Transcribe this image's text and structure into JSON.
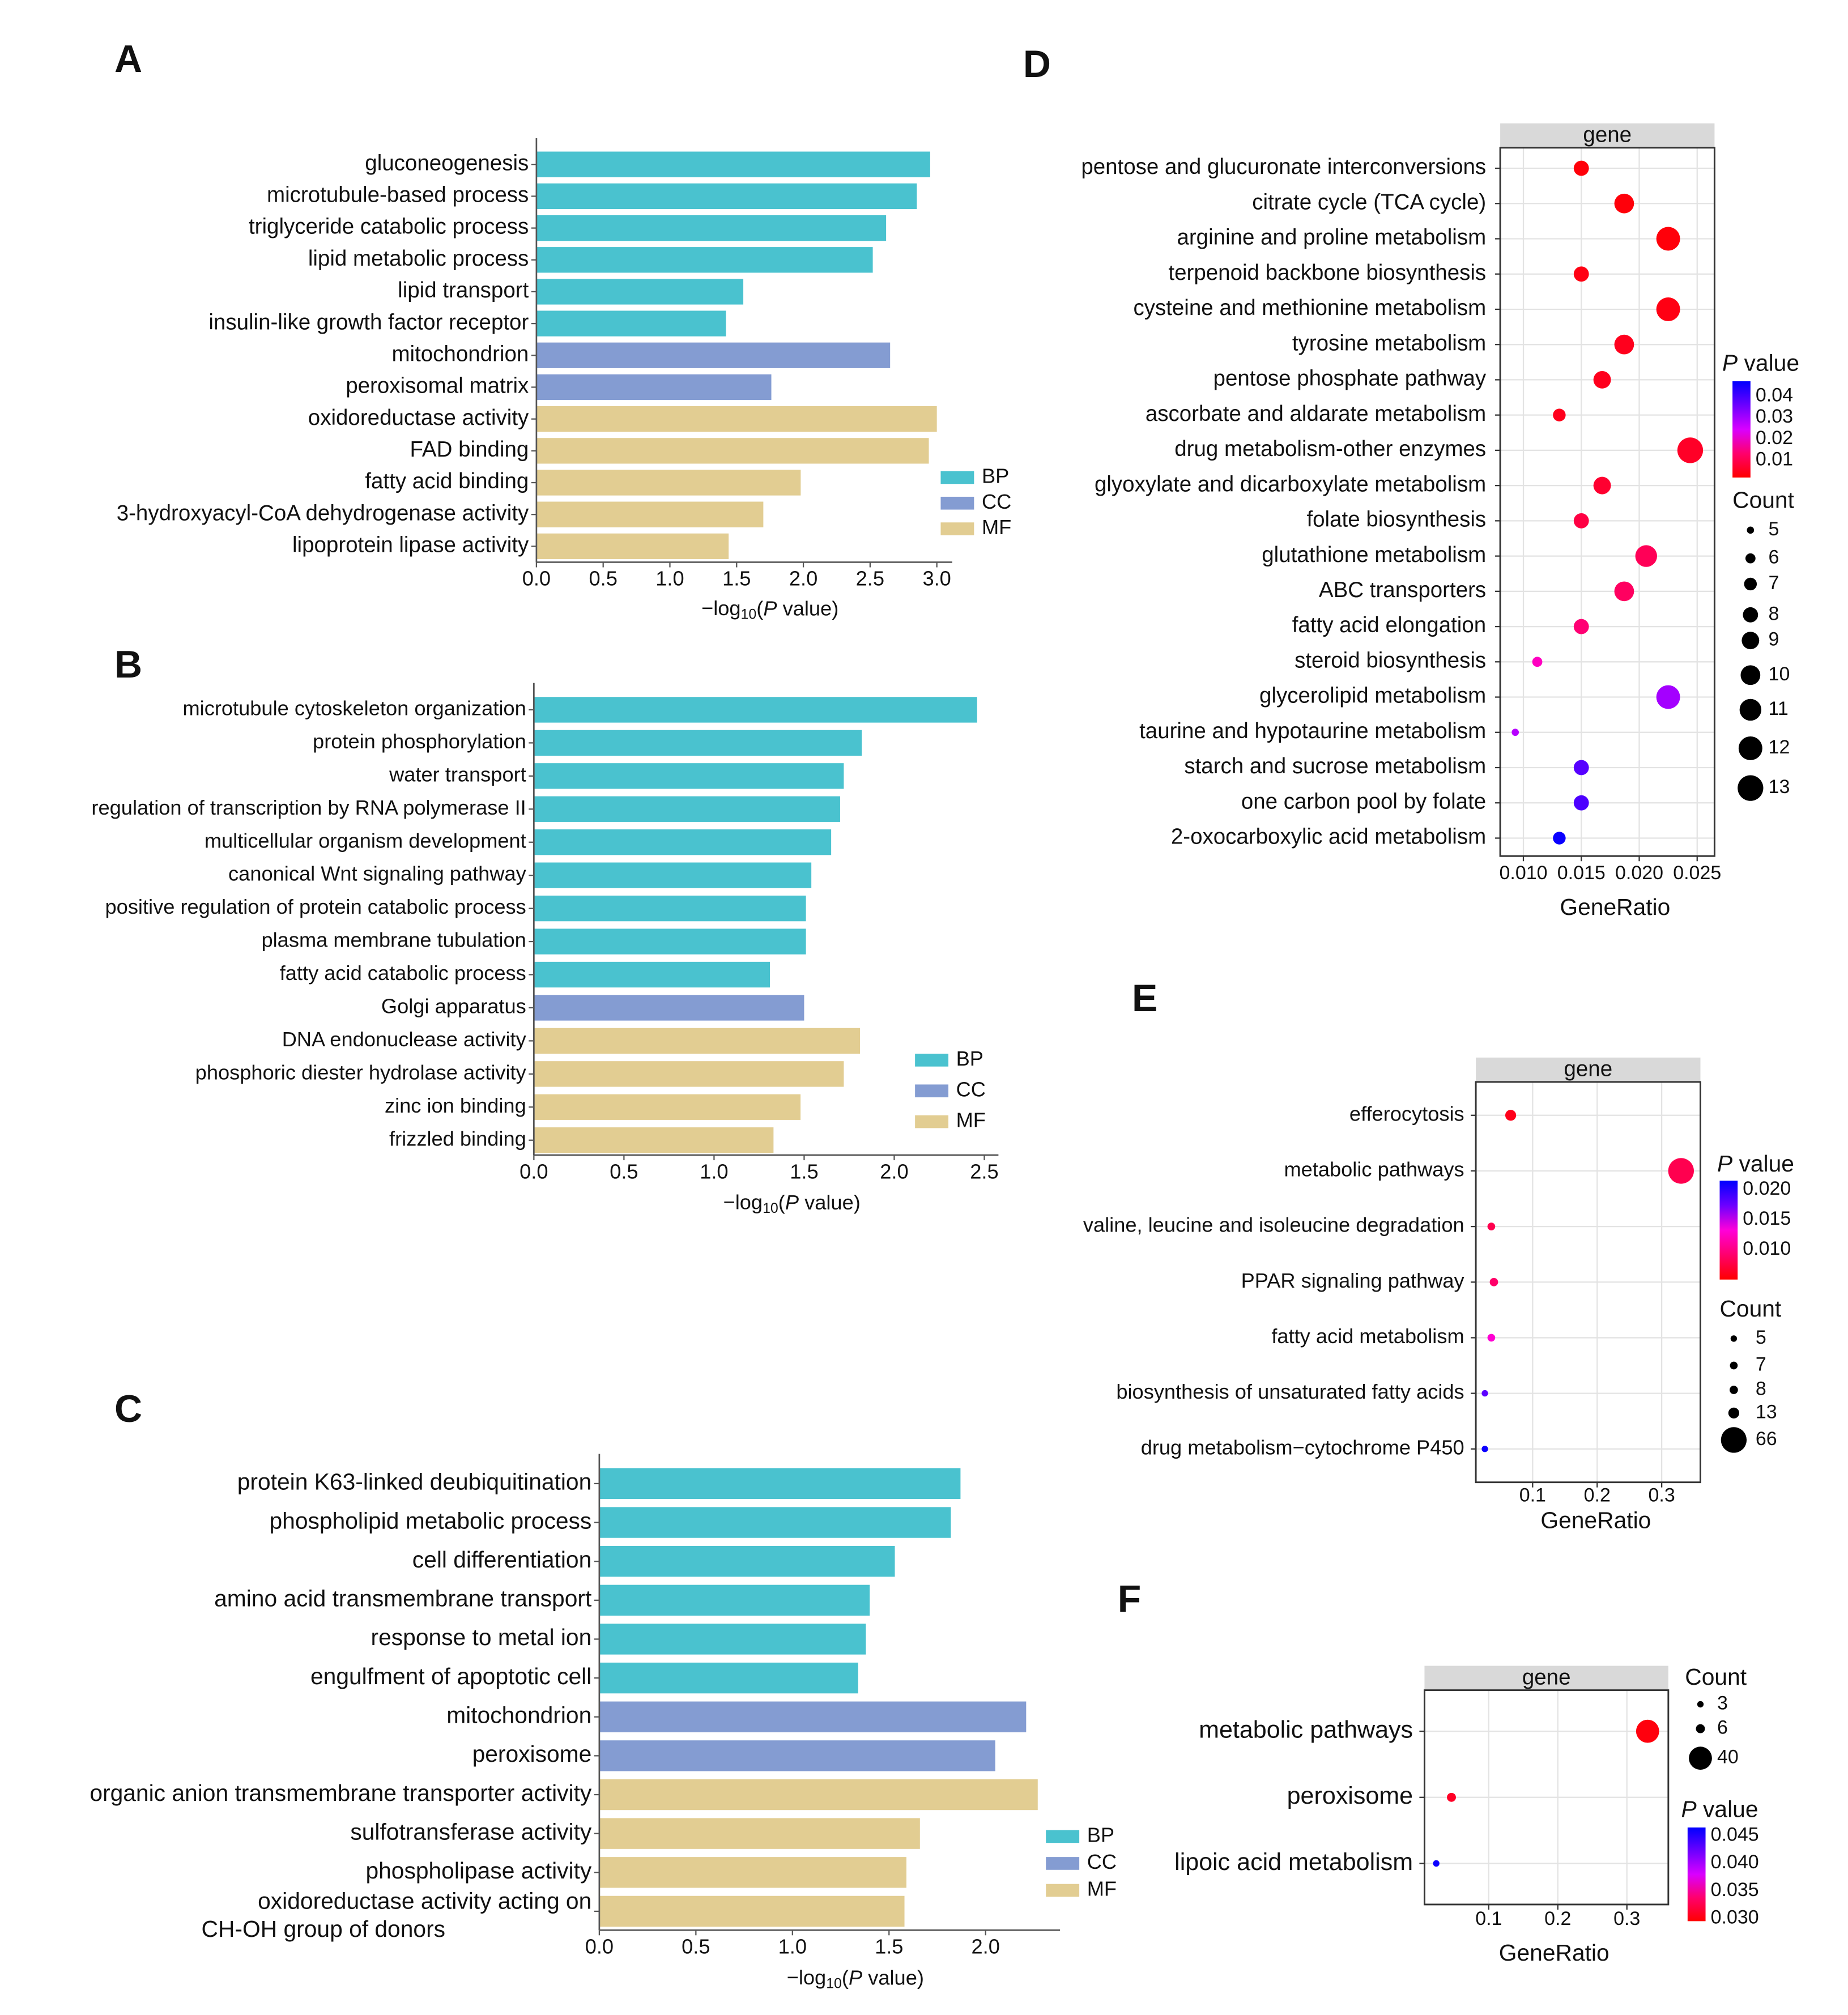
{
  "chart_data": [
    {
      "panel": "A",
      "type": "bar",
      "orientation": "horizontal",
      "xlabel": "-log10(P value)",
      "xlim": [
        0,
        3.1
      ],
      "xticks": [
        "0.0",
        "0.5",
        "1.0",
        "1.5",
        "2.0",
        "2.5",
        "3.0"
      ],
      "legend": [
        "BP",
        "CC",
        "MF"
      ],
      "legend_position": "right",
      "group_colors": {
        "BP": "#4AC2CF",
        "CC": "#849CD2",
        "MF": "#E2CD92"
      },
      "categories": [
        "gluconeogenesis",
        "microtubule-based process",
        "triglyceride catabolic process",
        "lipid metabolic process",
        "lipid transport",
        "insulin-like growth factor receptor",
        "mitochondrion",
        "peroxisomal matrix",
        "oxidoreductase activity",
        "FAD binding",
        "fatty acid binding",
        "3-hydroxyacyl-CoA dehydrogenase activity",
        "lipoprotein lipase activity"
      ],
      "groups": [
        "BP",
        "BP",
        "BP",
        "BP",
        "BP",
        "BP",
        "CC",
        "CC",
        "MF",
        "MF",
        "MF",
        "MF",
        "MF"
      ],
      "values": [
        2.95,
        2.85,
        2.62,
        2.52,
        1.55,
        1.42,
        2.65,
        1.76,
        3.0,
        2.94,
        1.98,
        1.7,
        1.44
      ]
    },
    {
      "panel": "B",
      "type": "bar",
      "orientation": "horizontal",
      "xlabel": "-log10(P value)",
      "xlim": [
        0,
        2.55
      ],
      "xticks": [
        "0.0",
        "0.5",
        "1.0",
        "1.5",
        "2.0",
        "2.5"
      ],
      "legend": [
        "BP",
        "CC",
        "MF"
      ],
      "legend_position": "right",
      "group_colors": {
        "BP": "#4AC2CF",
        "CC": "#849CD2",
        "MF": "#E2CD92"
      },
      "categories": [
        "microtubule cytoskeleton organization",
        "protein phosphorylation",
        "water transport",
        "regulation of transcription by RNA polymerase II",
        "multicellular organism development",
        "canonical Wnt signaling pathway",
        "positive regulation of protein catabolic process",
        "plasma membrane tubulation",
        "fatty acid catabolic process",
        "Golgi apparatus",
        "DNA endonuclease activity",
        "phosphoric diester hydrolase activity",
        "zinc ion binding",
        "frizzled binding"
      ],
      "groups": [
        "BP",
        "BP",
        "BP",
        "BP",
        "BP",
        "BP",
        "BP",
        "BP",
        "BP",
        "CC",
        "MF",
        "MF",
        "MF",
        "MF"
      ],
      "values": [
        2.46,
        1.82,
        1.72,
        1.7,
        1.65,
        1.54,
        1.51,
        1.51,
        1.31,
        1.5,
        1.81,
        1.72,
        1.48,
        1.33
      ]
    },
    {
      "panel": "C",
      "type": "bar",
      "orientation": "horizontal",
      "xlabel": "-log10(P value)",
      "xlim": [
        0,
        2.4
      ],
      "xticks": [
        "0.0",
        "0.5",
        "1.0",
        "1.5",
        "2.0"
      ],
      "legend": [
        "BP",
        "CC",
        "MF"
      ],
      "legend_position": "right",
      "group_colors": {
        "BP": "#4AC2CF",
        "CC": "#849CD2",
        "MF": "#E2CD92"
      },
      "categories": [
        "protein K63-linked deubiquitination",
        "phospholipid metabolic process",
        "cell differentiation",
        "amino acid transmembrane transport",
        "response to metal ion",
        "engulfment of apoptotic cell",
        "mitochondrion",
        "peroxisome",
        "organic anion transmembrane transporter activity",
        "sulfotransferase activity",
        "phospholipase activity",
        "oxidoreductase activity acting on\nCH-OH group of donors"
      ],
      "groups": [
        "BP",
        "BP",
        "BP",
        "BP",
        "BP",
        "BP",
        "CC",
        "CC",
        "MF",
        "MF",
        "MF",
        "MF"
      ],
      "values": [
        1.87,
        1.82,
        1.53,
        1.4,
        1.38,
        1.34,
        2.21,
        2.05,
        2.27,
        1.66,
        1.59,
        1.58
      ]
    },
    {
      "panel": "D",
      "type": "scatter",
      "strip": "gene",
      "xlabel": "GeneRatio",
      "xticks": [
        0.01,
        0.015,
        0.02,
        0.025
      ],
      "xtick_labels": [
        "0.010",
        "0.015",
        "0.020",
        "0.025"
      ],
      "xlim": [
        0.008,
        0.0265
      ],
      "pvalue_title": "P value",
      "pvalue_ticks": [
        "0.04",
        "0.03",
        "0.02",
        "0.01"
      ],
      "pvalue_tick_values": [
        0.04,
        0.03,
        0.02,
        0.01
      ],
      "pvalue_range": [
        0.002,
        0.047
      ],
      "count_title": "Count",
      "count_legend": [
        5,
        6,
        7,
        8,
        9,
        10,
        11,
        12,
        13
      ],
      "categories": [
        "pentose and glucuronate interconversions",
        "citrate cycle (TCA cycle)",
        "arginine and proline metabolism",
        "terpenoid backbone biosynthesis",
        "cysteine and methionine metabolism",
        "tyrosine metabolism",
        "pentose phosphate pathway",
        "ascorbate and aldarate metabolism",
        "drug metabolism-other enzymes",
        "glyoxylate and dicarboxylate metabolism",
        "folate biosynthesis",
        "glutathione metabolism",
        "ABC transporters",
        "fatty acid elongation",
        "steroid biosynthesis",
        "glycerolipid metabolism",
        "taurine and hypotaurine metabolism",
        "starch and sucrose metabolism",
        "one carbon pool by folate",
        "2-oxocarboxylic acid metabolism"
      ],
      "gene_ratio": [
        0.015,
        0.0187,
        0.0225,
        0.015,
        0.0225,
        0.0187,
        0.0168,
        0.0131,
        0.0244,
        0.0168,
        0.015,
        0.0206,
        0.0187,
        0.015,
        0.0112,
        0.0225,
        0.0093,
        0.015,
        0.015,
        0.0131
      ],
      "count": [
        8,
        10,
        12,
        8,
        12,
        10,
        9,
        7,
        13,
        9,
        8,
        11,
        10,
        8,
        6,
        12,
        5,
        8,
        8,
        7
      ],
      "p_value": [
        0.003,
        0.003,
        0.003,
        0.004,
        0.004,
        0.005,
        0.005,
        0.005,
        0.006,
        0.007,
        0.009,
        0.011,
        0.012,
        0.014,
        0.022,
        0.03,
        0.028,
        0.038,
        0.039,
        0.046
      ]
    },
    {
      "panel": "E",
      "type": "scatter",
      "strip": "gene",
      "xlabel": "GeneRatio",
      "xticks": [
        0.1,
        0.2,
        0.3
      ],
      "xtick_labels": [
        "0.1",
        "0.2",
        "0.3"
      ],
      "xlim": [
        0.012,
        0.36
      ],
      "pvalue_title": "P value",
      "pvalue_ticks": [
        "0.020",
        "0.015",
        "0.010"
      ],
      "pvalue_tick_values": [
        0.02,
        0.015,
        0.01
      ],
      "pvalue_range": [
        0.005,
        0.0215
      ],
      "count_title": "Count",
      "count_legend": [
        5,
        7,
        8,
        13,
        66
      ],
      "categories": [
        "efferocytosis",
        "metabolic pathways",
        "valine, leucine and isoleucine degradation",
        "PPAR signaling pathway",
        "fatty acid metabolism",
        "biosynthesis of unsaturated fatty acids",
        "drug metabolism−cytochrome P450"
      ],
      "gene_ratio": [
        0.066,
        0.33,
        0.036,
        0.04,
        0.036,
        0.026,
        0.026
      ],
      "count": [
        13,
        66,
        7,
        8,
        7,
        5,
        5
      ],
      "p_value": [
        0.006,
        0.008,
        0.008,
        0.009,
        0.013,
        0.018,
        0.021
      ]
    },
    {
      "panel": "F",
      "type": "scatter",
      "strip": "gene",
      "xlabel": "GeneRatio",
      "xticks": [
        0.1,
        0.2,
        0.3
      ],
      "xtick_labels": [
        "0.1",
        "0.2",
        "0.3"
      ],
      "xlim": [
        0.007,
        0.36
      ],
      "pvalue_title": "P value",
      "pvalue_ticks": [
        "0.045",
        "0.040",
        "0.035",
        "0.030"
      ],
      "pvalue_tick_values": [
        0.045,
        0.04,
        0.035,
        0.03
      ],
      "pvalue_range": [
        0.0295,
        0.0465
      ],
      "count_title": "Count",
      "count_legend": [
        3,
        6,
        40
      ],
      "categories": [
        "metabolic pathways",
        "peroxisome",
        "lipoic acid metabolism"
      ],
      "gene_ratio": [
        0.33,
        0.046,
        0.024
      ],
      "count": [
        40,
        6,
        3
      ],
      "p_value": [
        0.03,
        0.031,
        0.046
      ]
    }
  ]
}
